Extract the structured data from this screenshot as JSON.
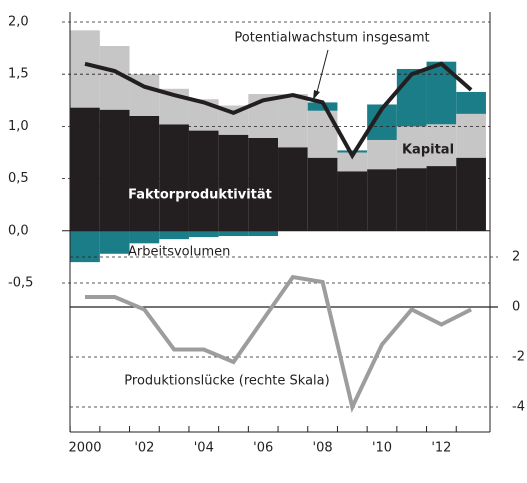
{
  "chart_data": {
    "type": "bar",
    "categories": [
      "2000",
      null,
      "'02",
      null,
      "'04",
      null,
      "'06",
      null,
      "'08",
      null,
      "'10",
      null,
      "'12",
      null
    ],
    "series": [
      {
        "name": "Faktorproduktivität",
        "color": "#231f20",
        "values": [
          1.18,
          1.16,
          1.1,
          1.02,
          0.96,
          0.92,
          0.89,
          0.8,
          0.7,
          0.57,
          0.59,
          0.6,
          0.62,
          0.7
        ]
      },
      {
        "name": "Kapital",
        "color": "#c6c6c6",
        "values": [
          0.74,
          0.61,
          0.4,
          0.34,
          0.3,
          0.28,
          0.42,
          0.51,
          0.45,
          0.18,
          0.28,
          0.4,
          0.4,
          0.42
        ]
      },
      {
        "name": "Arbeitsvolumen",
        "color": "#1b7d87",
        "values": [
          -0.3,
          -0.22,
          -0.12,
          -0.08,
          -0.06,
          -0.05,
          -0.05,
          0,
          0.08,
          0.02,
          0.34,
          0.55,
          0.6,
          0.21
        ]
      },
      {
        "name": "Potentialwachstum insgesamt",
        "type": "line",
        "color": "#231f20",
        "values": [
          1.6,
          1.53,
          1.38,
          1.3,
          1.23,
          1.13,
          1.25,
          1.3,
          1.23,
          0.72,
          1.17,
          1.5,
          1.6,
          1.35
        ]
      },
      {
        "name": "Produktionslücke (rechte Skala)",
        "type": "line",
        "axis": "y2",
        "color": "#9d9d9d",
        "values": [
          0.4,
          0.4,
          -0.1,
          -1.7,
          -1.7,
          -2.2,
          -0.5,
          1.2,
          1.0,
          -4.0,
          -1.5,
          -0.1,
          -0.7,
          -0.1
        ]
      }
    ],
    "ylim": [
      -0.5,
      2.0
    ],
    "yticks": [
      {
        "value": 2.0,
        "label": "2,0"
      },
      {
        "value": 1.5,
        "label": "1,5"
      },
      {
        "value": 1.0,
        "label": "1,0"
      },
      {
        "value": 0.5,
        "label": "0,5"
      },
      {
        "value": 0.0,
        "label": "0,0"
      },
      {
        "value": -0.5,
        "label": "-0,5"
      }
    ],
    "y2lim": [
      -5,
      3
    ],
    "y2ticks": [
      2,
      0,
      -2,
      -4
    ],
    "grid": true
  }
}
